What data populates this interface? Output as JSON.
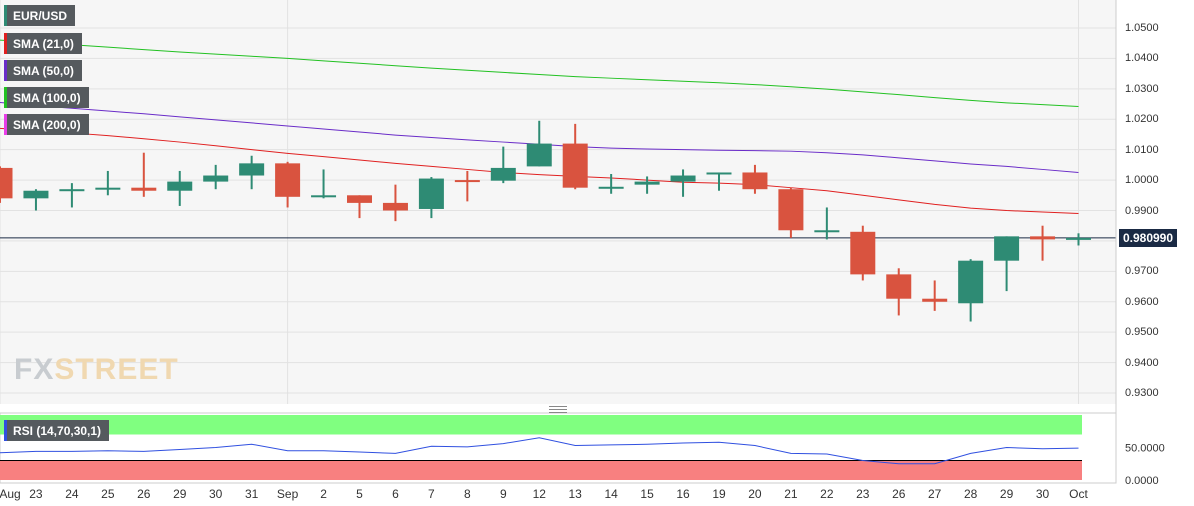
{
  "symbol": "EUR/USD",
  "indicators": {
    "sma21": {
      "label": "SMA (21,0)",
      "color": "#e02020"
    },
    "sma50": {
      "label": "SMA (50,0)",
      "color": "#6a2cc8"
    },
    "sma100": {
      "label": "SMA (100,0)",
      "color": "#22c122"
    },
    "sma200": {
      "label": "SMA (200,0)",
      "color": "#e83ee8"
    },
    "rsi": {
      "label": "RSI (14,70,30,1)",
      "color": "#3050e0",
      "overbought_color": "#80ff80",
      "oversold_color": "#f88080"
    }
  },
  "last_price": "0.980990",
  "logo": {
    "fx": "FX",
    "street": "STREET"
  },
  "colors": {
    "bull": "#2e8b74",
    "bear": "#d9533f",
    "bg": "#f6f6f6",
    "grid": "#e2e2e2",
    "price_line": "#1a2a44"
  },
  "chart_data": {
    "type": "candlestick",
    "x_labels": [
      "Aug",
      "23",
      "24",
      "25",
      "26",
      "29",
      "30",
      "31",
      "Sep",
      "2",
      "5",
      "6",
      "7",
      "8",
      "9",
      "12",
      "13",
      "14",
      "15",
      "16",
      "19",
      "20",
      "21",
      "22",
      "23",
      "26",
      "27",
      "28",
      "29",
      "30",
      "Oct"
    ],
    "y_ticks": [
      "1.0500",
      "1.0400",
      "1.0300",
      "1.0200",
      "1.0100",
      "1.0000",
      "0.9900",
      "0.9800",
      "0.9700",
      "0.9600",
      "0.9500",
      "0.9400",
      "0.9300"
    ],
    "ylim": [
      0.926,
      1.056
    ],
    "candles": [
      {
        "date": "Aug 22",
        "open": 1.004,
        "high": 1.0045,
        "low": 0.9925,
        "close": 0.994
      },
      {
        "date": "Aug 23",
        "open": 0.994,
        "high": 0.997,
        "low": 0.99,
        "close": 0.9965
      },
      {
        "date": "Aug 24",
        "open": 0.9968,
        "high": 0.999,
        "low": 0.991,
        "close": 0.997
      },
      {
        "date": "Aug 25",
        "open": 0.997,
        "high": 1.003,
        "low": 0.995,
        "close": 0.9975
      },
      {
        "date": "Aug 26",
        "open": 0.9975,
        "high": 1.009,
        "low": 0.9945,
        "close": 0.9965
      },
      {
        "date": "Aug 29",
        "open": 0.9965,
        "high": 1.003,
        "low": 0.9915,
        "close": 0.9995
      },
      {
        "date": "Aug 30",
        "open": 0.9995,
        "high": 1.005,
        "low": 0.997,
        "close": 1.0015
      },
      {
        "date": "Aug 31",
        "open": 1.0015,
        "high": 1.008,
        "low": 0.997,
        "close": 1.0055
      },
      {
        "date": "Sep 1",
        "open": 1.0055,
        "high": 1.006,
        "low": 0.991,
        "close": 0.9945
      },
      {
        "date": "Sep 2",
        "open": 0.9945,
        "high": 1.0035,
        "low": 0.994,
        "close": 0.995
      },
      {
        "date": "Sep 5",
        "open": 0.995,
        "high": 0.995,
        "low": 0.9875,
        "close": 0.9925
      },
      {
        "date": "Sep 6",
        "open": 0.9925,
        "high": 0.9985,
        "low": 0.9865,
        "close": 0.99
      },
      {
        "date": "Sep 7",
        "open": 0.9905,
        "high": 1.001,
        "low": 0.9875,
        "close": 1.0005
      },
      {
        "date": "Sep 8",
        "open": 1.0,
        "high": 1.003,
        "low": 0.993,
        "close": 0.9998
      },
      {
        "date": "Sep 9",
        "open": 0.9998,
        "high": 1.011,
        "low": 0.999,
        "close": 1.004
      },
      {
        "date": "Sep 12",
        "open": 1.0045,
        "high": 1.0195,
        "low": 1.0045,
        "close": 1.012
      },
      {
        "date": "Sep 13",
        "open": 1.012,
        "high": 1.0185,
        "low": 0.997,
        "close": 0.9975
      },
      {
        "date": "Sep 14",
        "open": 0.9975,
        "high": 1.002,
        "low": 0.9955,
        "close": 0.9978
      },
      {
        "date": "Sep 15",
        "open": 0.9985,
        "high": 1.0012,
        "low": 0.9955,
        "close": 0.9995
      },
      {
        "date": "Sep 16",
        "open": 0.9995,
        "high": 1.0035,
        "low": 0.9945,
        "close": 1.0015
      },
      {
        "date": "Sep 19",
        "open": 1.002,
        "high": 1.0025,
        "low": 0.9965,
        "close": 1.0025
      },
      {
        "date": "Sep 20",
        "open": 1.0025,
        "high": 1.005,
        "low": 0.9955,
        "close": 0.997
      },
      {
        "date": "Sep 21",
        "open": 0.997,
        "high": 0.9975,
        "low": 0.981,
        "close": 0.9835
      },
      {
        "date": "Sep 22",
        "open": 0.9835,
        "high": 0.991,
        "low": 0.9805,
        "close": 0.9835
      },
      {
        "date": "Sep 23",
        "open": 0.983,
        "high": 0.985,
        "low": 0.967,
        "close": 0.969
      },
      {
        "date": "Sep 26",
        "open": 0.969,
        "high": 0.971,
        "low": 0.9555,
        "close": 0.961
      },
      {
        "date": "Sep 27",
        "open": 0.961,
        "high": 0.967,
        "low": 0.957,
        "close": 0.96
      },
      {
        "date": "Sep 28",
        "open": 0.9595,
        "high": 0.974,
        "low": 0.9535,
        "close": 0.9735
      },
      {
        "date": "Sep 29",
        "open": 0.9735,
        "high": 0.9815,
        "low": 0.9635,
        "close": 0.9815
      },
      {
        "date": "Sep 30",
        "open": 0.9815,
        "high": 0.985,
        "low": 0.9735,
        "close": 0.9805
      },
      {
        "date": "Oct 3",
        "open": 0.9805,
        "high": 0.9825,
        "low": 0.9785,
        "close": 0.981
      }
    ],
    "series": [
      {
        "name": "SMA (21,0)",
        "values": [
          1.017,
          1.0162,
          1.0155,
          1.0146,
          1.0136,
          1.0125,
          1.0113,
          1.01,
          1.0088,
          1.0077,
          1.0066,
          1.0055,
          1.0045,
          1.0035,
          1.0025,
          1.0018,
          1.0012,
          1.0007,
          1.0,
          0.9993,
          0.999,
          0.9985,
          0.9975,
          0.9965,
          0.995,
          0.9935,
          0.992,
          0.9908,
          0.99,
          0.9895,
          0.989
        ]
      },
      {
        "name": "SMA (50,0)",
        "values": [
          1.0255,
          1.0245,
          1.0236,
          1.0227,
          1.0218,
          1.0208,
          1.0198,
          1.0188,
          1.0178,
          1.0168,
          1.0158,
          1.0148,
          1.014,
          1.0132,
          1.0125,
          1.0118,
          1.011,
          1.0105,
          1.0102,
          1.01,
          1.0098,
          1.0097,
          1.0095,
          1.009,
          1.0083,
          1.0073,
          1.0063,
          1.0053,
          1.0045,
          1.0035,
          1.0025
        ]
      },
      {
        "name": "SMA (100,0)",
        "values": [
          1.046,
          1.0453,
          1.0445,
          1.0437,
          1.0429,
          1.0421,
          1.0414,
          1.0407,
          1.04,
          1.0392,
          1.0384,
          1.0376,
          1.0368,
          1.0361,
          1.0354,
          1.0347,
          1.034,
          1.0335,
          1.033,
          1.0325,
          1.032,
          1.0314,
          1.0307,
          1.0299,
          1.029,
          1.0281,
          1.0271,
          1.0262,
          1.0254,
          1.0248,
          1.0242
        ]
      }
    ],
    "rsi": {
      "ylim": [
        0,
        100
      ],
      "y_ticks": [
        "50.0000",
        "0.0000"
      ],
      "overbought": 70,
      "oversold": 30,
      "values": [
        42,
        44,
        44,
        45,
        44,
        47,
        50,
        55,
        45,
        45,
        43,
        41,
        52,
        51,
        56,
        65,
        53,
        54,
        55,
        57,
        58,
        53,
        41,
        40,
        30,
        25,
        25,
        41,
        50,
        48,
        49
      ]
    }
  }
}
